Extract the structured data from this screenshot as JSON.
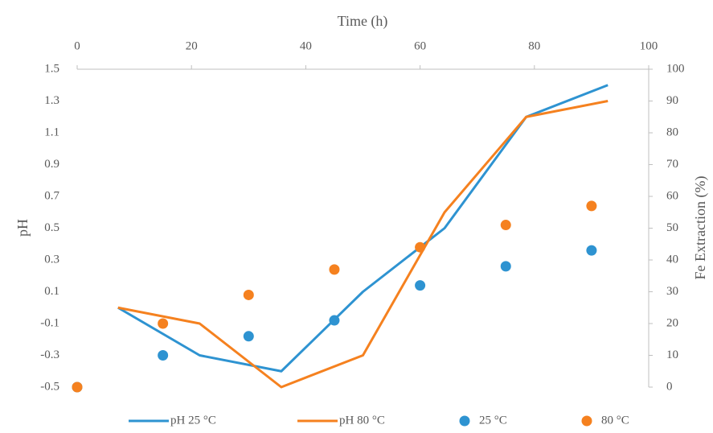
{
  "chart_data": {
    "type": "line",
    "x_label": "Time (h)",
    "y_label": "pH",
    "y2_label": "Fe Extraction (%)",
    "categories": [
      null,
      null,
      null,
      null,
      null,
      null,
      null
    ],
    "ylim": [
      -0.5,
      1.5
    ],
    "yticks": [
      -0.5,
      -0.3,
      -0.1,
      0.1,
      0.3,
      0.5,
      0.7,
      0.9,
      1.1,
      1.3,
      1.5
    ],
    "y2lim": [
      0,
      100
    ],
    "y2ticks": [
      0,
      10,
      20,
      30,
      40,
      50,
      60,
      70,
      80,
      90,
      100
    ],
    "xlim": [
      0,
      100
    ],
    "xticks": [
      0,
      20,
      40,
      60,
      80,
      100
    ],
    "grid": false,
    "legend": "bottom",
    "series": [
      {
        "name": "pH 25 °C",
        "type": "line",
        "color": "#2e93d1",
        "values": [
          0,
          -0.3,
          -0.4,
          0.1,
          0.5,
          1.2,
          1.4
        ]
      },
      {
        "name": "pH 80 °C",
        "type": "line",
        "color": "#f5811f",
        "values": [
          0,
          -0.1,
          -0.5,
          -0.3,
          0.6,
          1.2,
          1.3
        ]
      },
      {
        "name": "25 °C",
        "type": "scatter",
        "axis": "y2",
        "color": "#2e93d1",
        "x": [
          0,
          15,
          30,
          45,
          60,
          75,
          90
        ],
        "values": [
          0,
          10,
          16,
          21,
          32,
          38,
          43
        ]
      },
      {
        "name": "80 °C",
        "type": "scatter",
        "axis": "y2",
        "color": "#f5811f",
        "x": [
          0,
          15,
          30,
          45,
          60,
          75,
          90
        ],
        "values": [
          0,
          20,
          29,
          37,
          44,
          51,
          57
        ]
      }
    ]
  }
}
